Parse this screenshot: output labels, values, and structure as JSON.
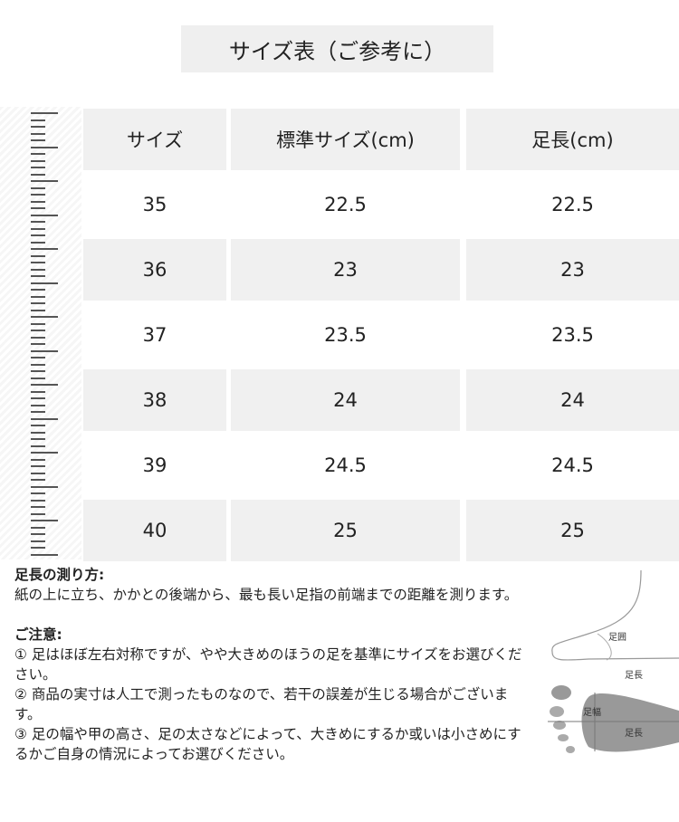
{
  "title": "サイズ表（ご参考に）",
  "table": {
    "headers": [
      "サイズ",
      "標準サイズ(cm)",
      "足長(cm)"
    ],
    "rows": [
      [
        "35",
        "22.5",
        "22.5"
      ],
      [
        "36",
        "23",
        "23"
      ],
      [
        "37",
        "23.5",
        "23.5"
      ],
      [
        "38",
        "24",
        "24"
      ],
      [
        "39",
        "24.5",
        "24.5"
      ],
      [
        "40",
        "25",
        "25"
      ]
    ]
  },
  "measure": {
    "heading": "足長の測り方:",
    "text": "紙の上に立ち、かかとの後端から、最も長い足指の前端までの距離を測ります。"
  },
  "notice": {
    "heading": "ご注意:",
    "items": [
      "① 足はほぼ左右対称ですが、やや大きめのほうの足を基準にサイズをお選びください。",
      "② 商品の実寸は人工で測ったものなので、若干の誤差が生じる場合がございます。",
      "③ 足の幅や甲の高さ、足の太さなどによって、大きめにするか或いは小さめにするかご自身の情況によってお選びください。"
    ]
  },
  "diagram": {
    "girth": "足囲",
    "length_side": "足長",
    "width": "足幅",
    "length_bottom": "足長"
  }
}
